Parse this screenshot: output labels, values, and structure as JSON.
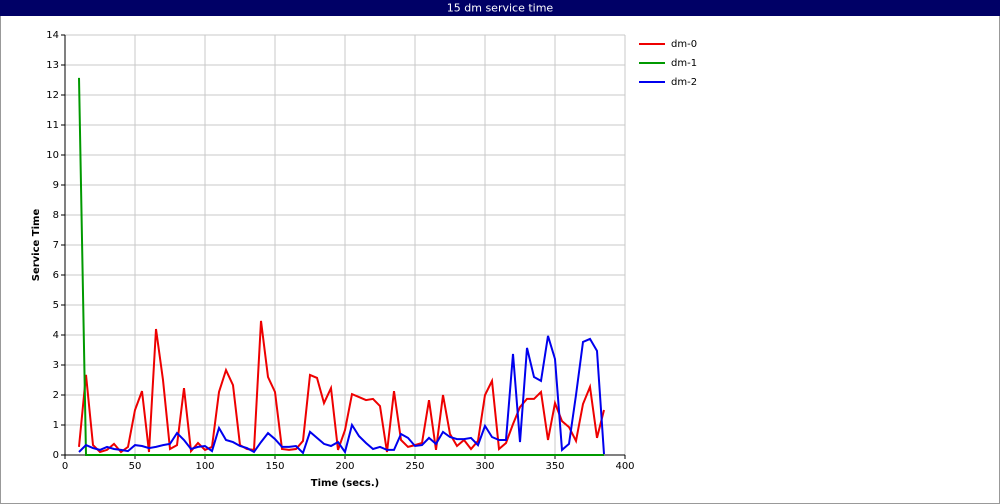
{
  "chart_data": {
    "type": "line",
    "title": "15 dm service time",
    "x_label": "Time (secs.)",
    "y_label": "Service Time",
    "x": [
      10,
      15,
      20,
      25,
      30,
      35,
      40,
      45,
      50,
      55,
      60,
      65,
      70,
      75,
      80,
      85,
      90,
      95,
      100,
      105,
      110,
      115,
      120,
      125,
      130,
      135,
      140,
      145,
      150,
      155,
      160,
      165,
      170,
      175,
      180,
      185,
      190,
      195,
      200,
      205,
      210,
      215,
      220,
      225,
      230,
      235,
      240,
      245,
      250,
      255,
      260,
      265,
      270,
      275,
      280,
      285,
      290,
      295,
      300,
      305,
      310,
      315,
      320,
      325,
      330,
      335,
      340,
      345,
      350,
      355,
      360,
      365,
      370,
      375,
      380,
      385
    ],
    "series": [
      {
        "name": "dm-0",
        "color": "#ee0000",
        "values": [
          0.27,
          2.67,
          0.33,
          0.1,
          0.17,
          0.37,
          0.1,
          0.27,
          1.5,
          2.13,
          0.1,
          4.2,
          2.5,
          0.2,
          0.33,
          2.23,
          0.13,
          0.4,
          0.17,
          0.27,
          2.1,
          2.83,
          2.33,
          0.33,
          0.2,
          0.17,
          4.47,
          2.6,
          2.1,
          0.2,
          0.17,
          0.2,
          0.47,
          2.67,
          2.57,
          1.73,
          2.23,
          0.17,
          0.83,
          2.03,
          1.93,
          1.83,
          1.87,
          1.63,
          0.1,
          2.13,
          0.5,
          0.27,
          0.33,
          0.4,
          1.83,
          0.17,
          2.0,
          0.7,
          0.3,
          0.5,
          0.2,
          0.47,
          2.0,
          2.47,
          0.2,
          0.4,
          1.03,
          1.6,
          1.87,
          1.87,
          2.1,
          0.5,
          1.73,
          1.13,
          0.93,
          0.47,
          1.7,
          2.27,
          0.57,
          1.5
        ]
      },
      {
        "name": "dm-1",
        "color": "#009900",
        "values": [
          12.57,
          0,
          0,
          0,
          0,
          0,
          0,
          0,
          0,
          0,
          0,
          0,
          0,
          0,
          0,
          0,
          0,
          0,
          0,
          0,
          0,
          0,
          0,
          0,
          0,
          0,
          0,
          0,
          0,
          0,
          0,
          0,
          0,
          0,
          0,
          0,
          0,
          0,
          0,
          0,
          0,
          0,
          0,
          0,
          0,
          0,
          0,
          0,
          0,
          0,
          0,
          0,
          0,
          0,
          0,
          0,
          0,
          0,
          0,
          0,
          0,
          0,
          0,
          0,
          0,
          0,
          0,
          0,
          0,
          0,
          0,
          0,
          0,
          0,
          0,
          0
        ]
      },
      {
        "name": "dm-2",
        "color": "#0000ee",
        "values": [
          0.1,
          0.33,
          0.23,
          0.17,
          0.27,
          0.2,
          0.17,
          0.13,
          0.33,
          0.3,
          0.23,
          0.27,
          0.33,
          0.37,
          0.73,
          0.5,
          0.2,
          0.27,
          0.3,
          0.13,
          0.9,
          0.5,
          0.43,
          0.3,
          0.23,
          0.1,
          0.43,
          0.73,
          0.53,
          0.27,
          0.27,
          0.3,
          0.07,
          0.77,
          0.57,
          0.37,
          0.3,
          0.43,
          0.1,
          1.0,
          0.63,
          0.4,
          0.2,
          0.27,
          0.17,
          0.17,
          0.7,
          0.57,
          0.3,
          0.33,
          0.57,
          0.37,
          0.77,
          0.6,
          0.53,
          0.53,
          0.57,
          0.33,
          0.97,
          0.6,
          0.5,
          0.5,
          3.37,
          0.43,
          3.57,
          2.6,
          2.47,
          3.97,
          3.2,
          0.17,
          0.37,
          2.0,
          3.77,
          3.87,
          3.47,
          0.03
        ]
      }
    ],
    "xlim": [
      0,
      400
    ],
    "xticks": [
      0,
      50,
      100,
      150,
      200,
      250,
      300,
      350,
      400
    ],
    "ylim": [
      0,
      14
    ],
    "yticks": [
      0,
      1,
      2,
      3,
      4,
      5,
      6,
      7,
      8,
      9,
      10,
      11,
      12,
      13,
      14
    ],
    "grid": true
  }
}
